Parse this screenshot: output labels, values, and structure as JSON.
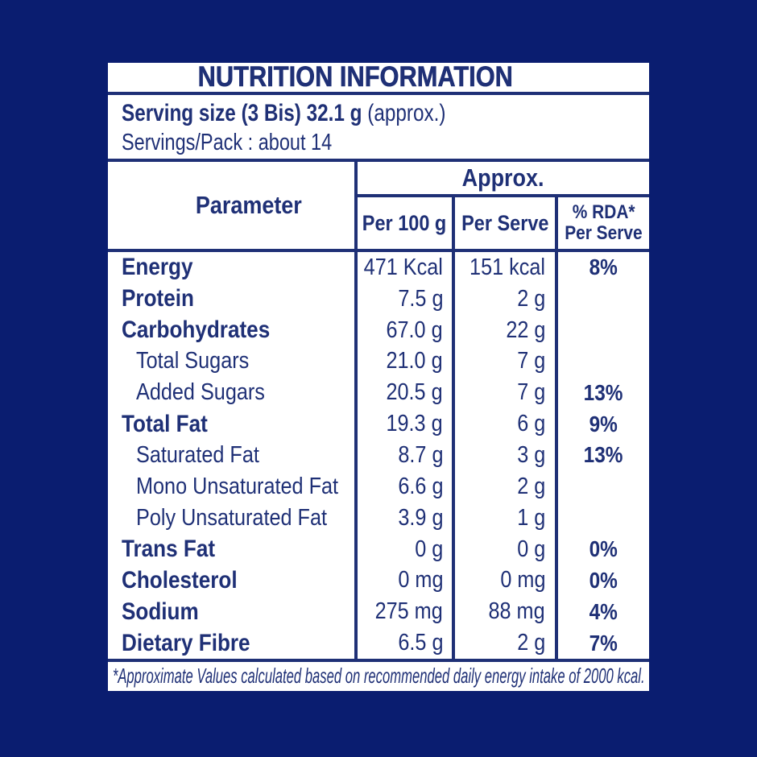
{
  "colors": {
    "background": "#0A1D70",
    "panel": "#FFFFFF",
    "ink": "#1F3076"
  },
  "title": "NUTRITION INFORMATION",
  "serving": {
    "size_bold": "Serving size (3 Bis) 32.1 g",
    "size_suffix": "(approx.)",
    "pack": "Servings/Pack : about 14"
  },
  "header": {
    "parameter": "Parameter",
    "approx": "Approx.",
    "per_100g": "Per 100 g",
    "per_serve": "Per Serve",
    "rda_line1": "% RDA*",
    "rda_line2": "Per Serve"
  },
  "rows": [
    {
      "label": "Energy",
      "bold": true,
      "indent": false,
      "per_100g": "471 Kcal",
      "per_serve": "151 kcal",
      "rda": "8%"
    },
    {
      "label": "Protein",
      "bold": true,
      "indent": false,
      "per_100g": "7.5 g",
      "per_serve": "2 g",
      "rda": ""
    },
    {
      "label": "Carbohydrates",
      "bold": true,
      "indent": false,
      "per_100g": "67.0 g",
      "per_serve": "22 g",
      "rda": ""
    },
    {
      "label": "Total Sugars",
      "bold": false,
      "indent": true,
      "per_100g": "21.0 g",
      "per_serve": "7 g",
      "rda": ""
    },
    {
      "label": "Added Sugars",
      "bold": false,
      "indent": true,
      "per_100g": "20.5 g",
      "per_serve": "7 g",
      "rda": "13%"
    },
    {
      "label": "Total Fat",
      "bold": true,
      "indent": false,
      "per_100g": "19.3 g",
      "per_serve": "6 g",
      "rda": "9%"
    },
    {
      "label": "Saturated Fat",
      "bold": false,
      "indent": true,
      "per_100g": "8.7 g",
      "per_serve": "3 g",
      "rda": "13%"
    },
    {
      "label": "Mono Unsaturated Fat",
      "bold": false,
      "indent": true,
      "per_100g": "6.6 g",
      "per_serve": "2 g",
      "rda": ""
    },
    {
      "label": "Poly Unsaturated Fat",
      "bold": false,
      "indent": true,
      "per_100g": "3.9 g",
      "per_serve": "1 g",
      "rda": ""
    },
    {
      "label": "Trans Fat",
      "bold": true,
      "indent": false,
      "per_100g": "0 g",
      "per_serve": "0 g",
      "rda": "0%"
    },
    {
      "label": "Cholesterol",
      "bold": true,
      "indent": false,
      "per_100g": "0 mg",
      "per_serve": "0 mg",
      "rda": "0%"
    },
    {
      "label": "Sodium",
      "bold": true,
      "indent": false,
      "per_100g": "275 mg",
      "per_serve": "88 mg",
      "rda": "4%"
    },
    {
      "label": "Dietary Fibre",
      "bold": true,
      "indent": false,
      "per_100g": "6.5 g",
      "per_serve": "2 g",
      "rda": "7%"
    }
  ],
  "footnote": "*Approximate Values calculated based on recommended daily energy intake of 2000 kcal."
}
